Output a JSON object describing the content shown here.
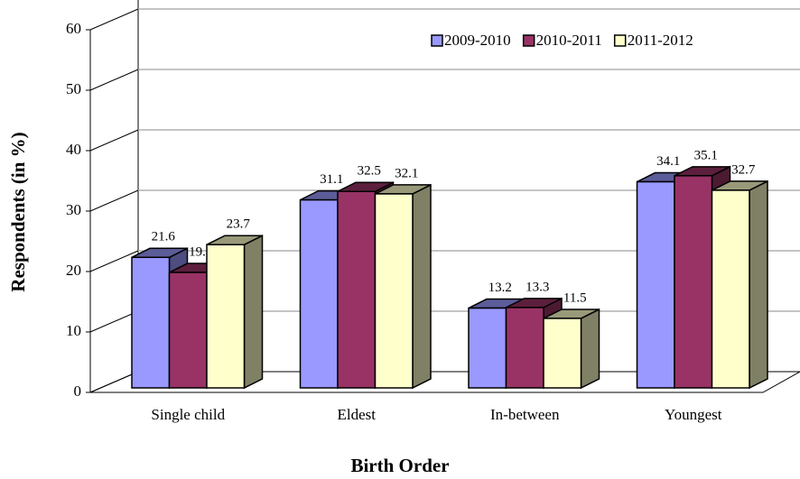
{
  "chart_data": {
    "type": "bar",
    "xlabel": "Birth Order",
    "ylabel": "Respondents (in %)",
    "categories": [
      "Single child",
      "Eldest",
      "In-between",
      "Youngest"
    ],
    "series": [
      {
        "name": "2009-2010",
        "color": "#9999ff",
        "values": [
          21.6,
          31.1,
          13.2,
          34.1
        ]
      },
      {
        "name": "2010-2011",
        "color": "#993366",
        "values": [
          19.1,
          32.5,
          13.3,
          35.1
        ]
      },
      {
        "name": "2011-2012",
        "color": "#ffffcc",
        "values": [
          23.7,
          32.1,
          11.5,
          32.7
        ]
      }
    ],
    "ylim": [
      0,
      60
    ],
    "yticks": [
      0,
      10,
      20,
      30,
      40,
      50,
      60
    ],
    "grid": true,
    "legend": "top-right"
  }
}
